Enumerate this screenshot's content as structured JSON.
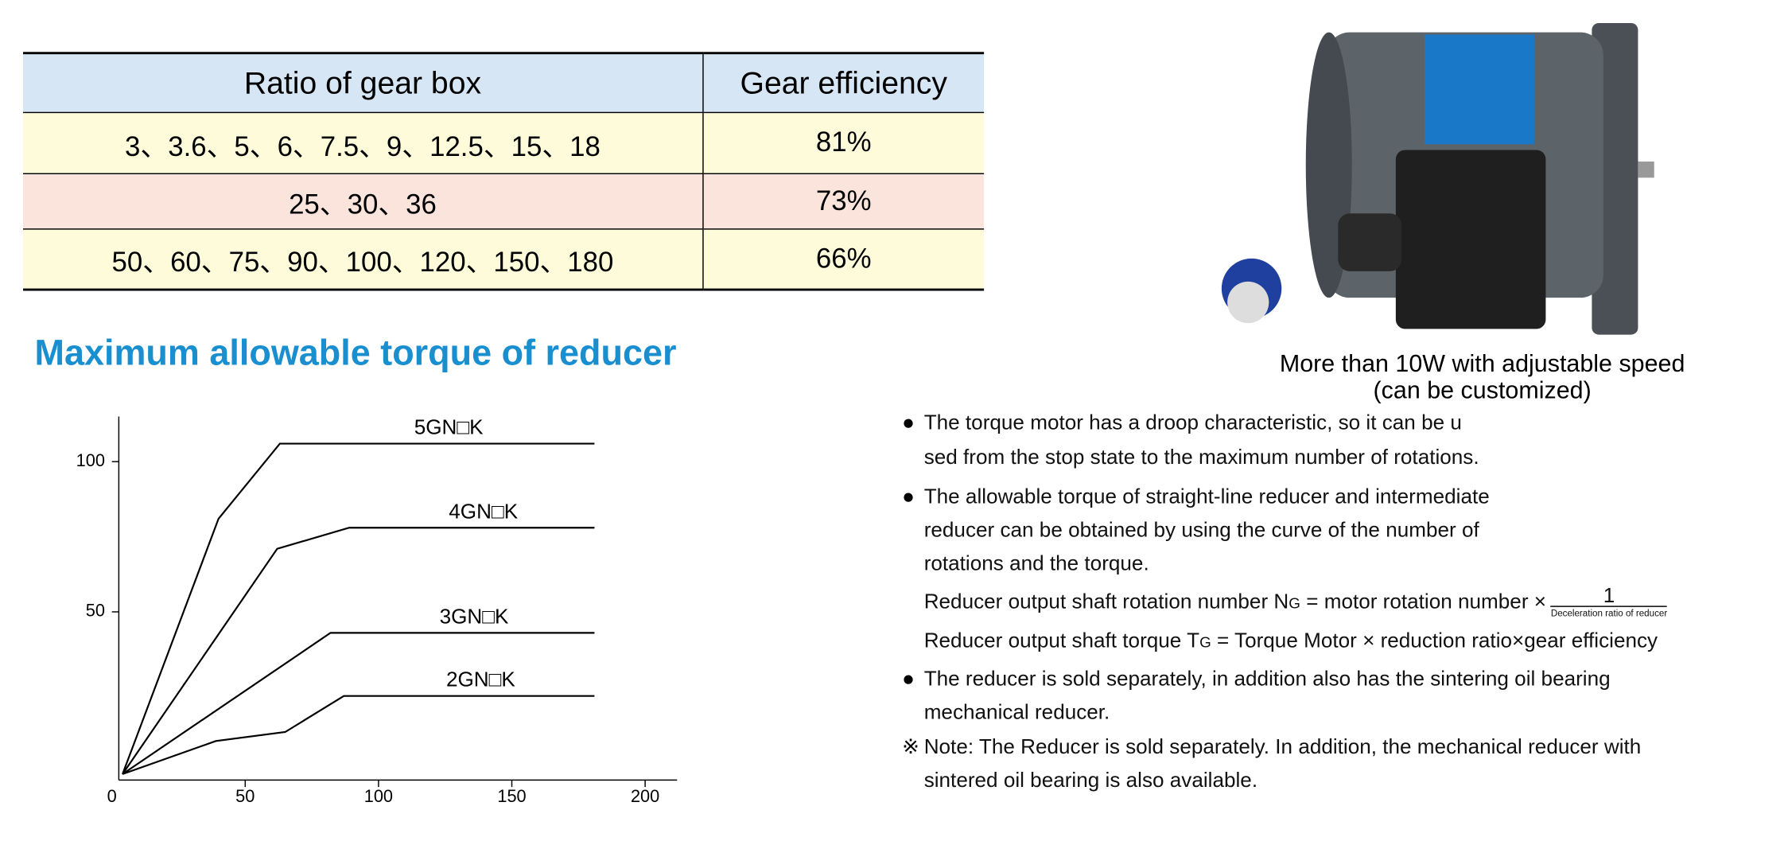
{
  "table": {
    "header": [
      "Ratio of gear box",
      "Gear efficiency"
    ],
    "rows": [
      [
        "3、3.6、5、6、7.5、9、12.5、15、18",
        "81%"
      ],
      [
        "25、30、36",
        "73%"
      ],
      [
        "50、60、75、90、100、120、150、180",
        "66%"
      ]
    ]
  },
  "heading": "Maximum allowable torque of reducer",
  "chart_data": {
    "type": "line",
    "xlim": [
      0,
      212
    ],
    "ylim": [
      -6,
      115
    ],
    "xticks": [
      0,
      50,
      100,
      150,
      200
    ],
    "yticks": [
      50,
      100
    ],
    "series": [
      {
        "name": "5GN□K",
        "color": "#000000",
        "x": [
          4,
          40,
          63,
          181
        ],
        "values": [
          -4,
          81,
          106,
          106
        ]
      },
      {
        "name": "4GN□K",
        "color": "#000000",
        "x": [
          4,
          62,
          89,
          181
        ],
        "values": [
          -4,
          71,
          78,
          78
        ]
      },
      {
        "name": "3GN□K",
        "color": "#000000",
        "x": [
          4,
          82,
          181
        ],
        "values": [
          -4,
          43,
          43
        ]
      },
      {
        "name": "2GN□K",
        "color": "#000000",
        "x": [
          4,
          39,
          65,
          87,
          181
        ],
        "values": [
          -4,
          7,
          10,
          22,
          22
        ]
      }
    ]
  },
  "image_caption": [
    "More than 10W with adjustable speed",
    "(can be customized)"
  ],
  "notes": [
    {
      "marker": "●",
      "lines": [
        "The torque motor has a droop characteristic, so it can be u",
        "sed from the stop state to the maximum number of rotations."
      ]
    },
    {
      "marker": "●",
      "lines": [
        "The allowable torque of straight-line reducer and intermediate",
        "reducer can be obtained by using the curve of the number of",
        "rotations and the torque."
      ]
    },
    {
      "formula1": {
        "text": "Reducer output shaft rotation number N",
        "sub": "G",
        "rest": " = motor rotation number ×",
        "numerator": "1",
        "denominator": "Deceleration ratio of reducer"
      }
    },
    {
      "formula2": {
        "text": "Reducer output shaft torque T",
        "sub": "G",
        "rest": " = Torque Motor × reduction ratio×gear efficiency"
      }
    },
    {
      "marker": "●",
      "lines": [
        "The reducer is sold separately, in addition also has the sintering oil bearing",
        "mechanical reducer."
      ]
    },
    {
      "marker": "※",
      "lines": [
        "Note: The Reducer is sold separately. In addition, the mechanical reducer with",
        "sintered oil bearing is also available."
      ]
    }
  ]
}
